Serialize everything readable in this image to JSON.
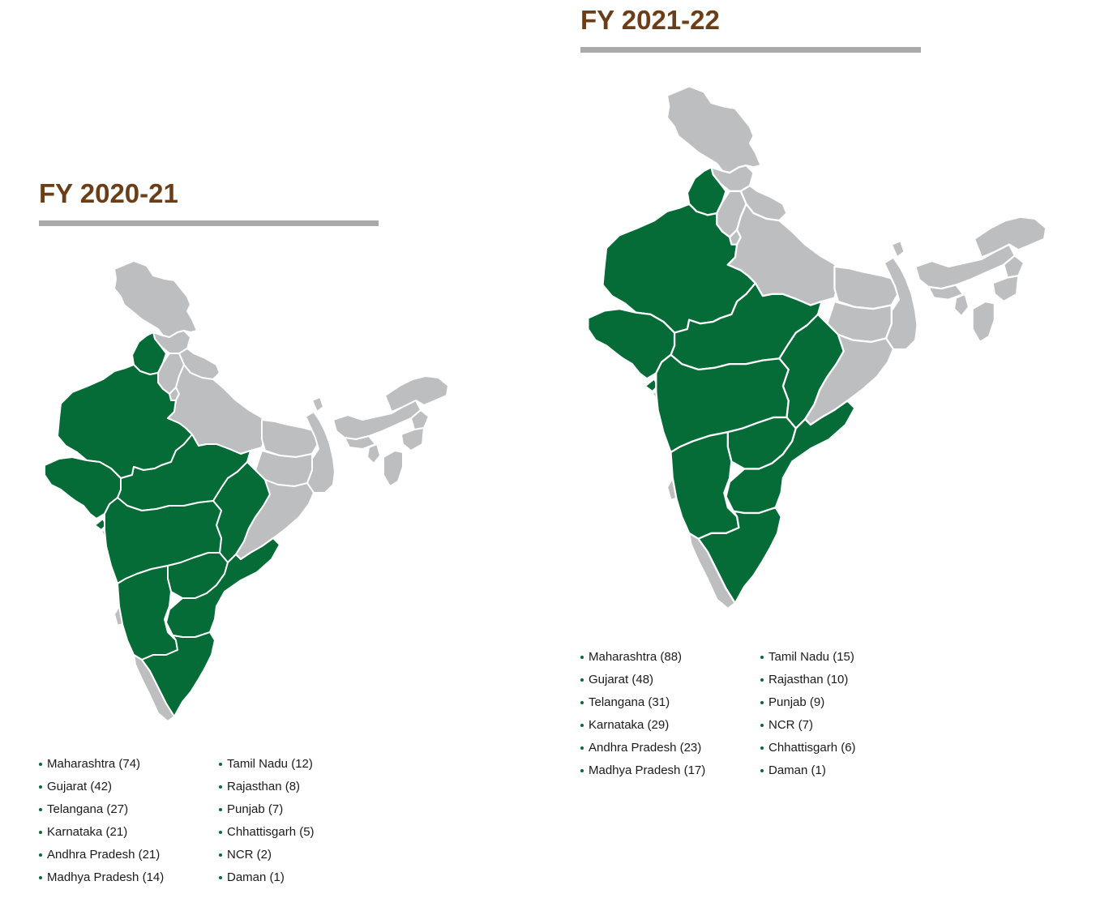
{
  "colors": {
    "highlight": "#056b37",
    "other": "#bdbebf",
    "heading": "#6b3e17",
    "rule": "#a9a9aa",
    "text": "#1a1a1a"
  },
  "panels": [
    {
      "heading": "FY 2020-21",
      "legend": {
        "left": [
          {
            "label": "Maharashtra (74)",
            "state": "Maharashtra",
            "count": 74
          },
          {
            "label": "Gujarat (42)",
            "state": "Gujarat",
            "count": 42
          },
          {
            "label": "Telangana (27)",
            "state": "Telangana",
            "count": 27
          },
          {
            "label": "Karnataka (21)",
            "state": "Karnataka",
            "count": 21
          },
          {
            "label": "Andhra Pradesh (21)",
            "state": "Andhra Pradesh",
            "count": 21
          },
          {
            "label": "Madhya Pradesh (14)",
            "state": "Madhya Pradesh",
            "count": 14
          }
        ],
        "right": [
          {
            "label": "Tamil Nadu (12)",
            "state": "Tamil Nadu",
            "count": 12
          },
          {
            "label": "Rajasthan (8)",
            "state": "Rajasthan",
            "count": 8
          },
          {
            "label": "Punjab (7)",
            "state": "Punjab",
            "count": 7
          },
          {
            "label": "Chhattisgarh (5)",
            "state": "Chhattisgarh",
            "count": 5
          },
          {
            "label": "NCR (2)",
            "state": "NCR",
            "count": 2
          },
          {
            "label": "Daman (1)",
            "state": "Daman",
            "count": 1
          }
        ]
      }
    },
    {
      "heading": "FY 2021-22",
      "legend": {
        "left": [
          {
            "label": "Maharashtra (88)",
            "state": "Maharashtra",
            "count": 88
          },
          {
            "label": "Gujarat (48)",
            "state": "Gujarat",
            "count": 48
          },
          {
            "label": "Telangana (31)",
            "state": "Telangana",
            "count": 31
          },
          {
            "label": "Karnataka (29)",
            "state": "Karnataka",
            "count": 29
          },
          {
            "label": "Andhra Pradesh (23)",
            "state": "Andhra Pradesh",
            "count": 23
          },
          {
            "label": "Madhya Pradesh (17)",
            "state": "Madhya Pradesh",
            "count": 17
          }
        ],
        "right": [
          {
            "label": "Tamil Nadu (15)",
            "state": "Tamil Nadu",
            "count": 15
          },
          {
            "label": "Rajasthan (10)",
            "state": "Rajasthan",
            "count": 10
          },
          {
            "label": "Punjab (9)",
            "state": "Punjab",
            "count": 9
          },
          {
            "label": "NCR (7)",
            "state": "NCR",
            "count": 7
          },
          {
            "label": "Chhattisgarh (6)",
            "state": "Chhattisgarh",
            "count": 6
          },
          {
            "label": "Daman (1)",
            "state": "Daman",
            "count": 1
          }
        ]
      }
    }
  ]
}
